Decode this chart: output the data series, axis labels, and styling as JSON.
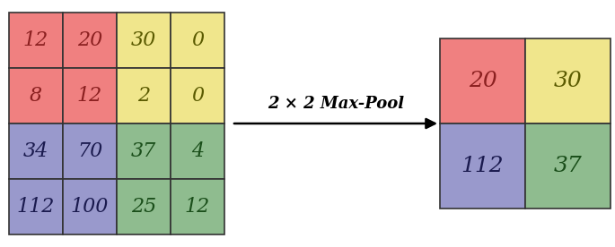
{
  "input_matrix": [
    [
      12,
      20,
      30,
      0
    ],
    [
      8,
      12,
      2,
      0
    ],
    [
      34,
      70,
      37,
      4
    ],
    [
      112,
      100,
      25,
      12
    ]
  ],
  "output_matrix": [
    [
      20,
      30
    ],
    [
      112,
      37
    ]
  ],
  "input_colors": [
    [
      "#F08080",
      "#F08080",
      "#F0E68C",
      "#F0E68C"
    ],
    [
      "#F08080",
      "#F08080",
      "#F0E68C",
      "#F0E68C"
    ],
    [
      "#9999CC",
      "#9999CC",
      "#8FBC8F",
      "#8FBC8F"
    ],
    [
      "#9999CC",
      "#9999CC",
      "#8FBC8F",
      "#8FBC8F"
    ]
  ],
  "output_colors": [
    [
      "#F08080",
      "#F0E68C"
    ],
    [
      "#9999CC",
      "#8FBC8F"
    ]
  ],
  "arrow_label": "2 × 2 Max-Pool",
  "font_size": 16,
  "label_font_size": 13,
  "edge_color": "#333333",
  "text_color_dark": "#1a1a4e",
  "text_color_red": "#5a0000"
}
